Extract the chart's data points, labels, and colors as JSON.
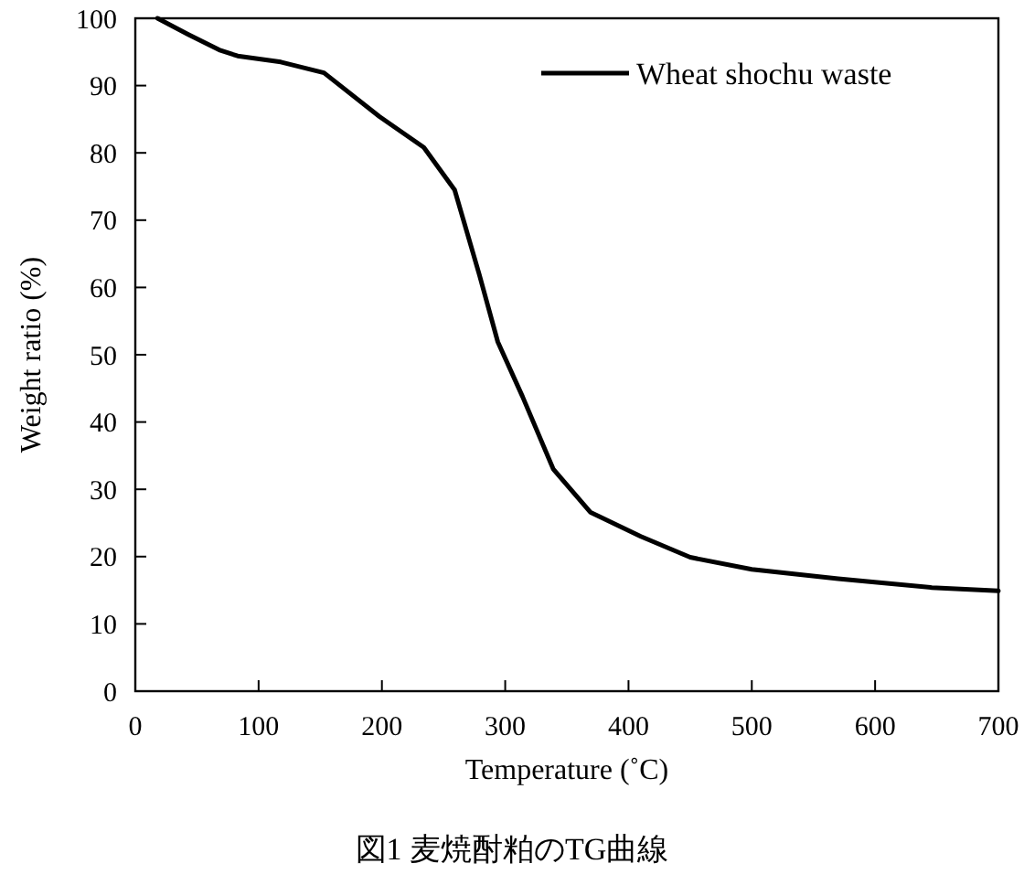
{
  "chart_data": {
    "type": "line",
    "xlabel": "Temperature (˚C)",
    "ylabel": "Weight ratio (%)",
    "annotations": [
      "図1 麦焼酎粕のTG曲線"
    ],
    "xlim": [
      0,
      700
    ],
    "xticks": [
      0,
      100,
      200,
      300,
      400,
      500,
      600,
      700
    ],
    "ylim": [
      0,
      100
    ],
    "yticks": [
      0,
      10,
      20,
      30,
      40,
      50,
      60,
      70,
      80,
      90,
      100
    ],
    "grid": false,
    "legend": "top right",
    "marker": "none",
    "line_style": "solid",
    "series": [
      {
        "name": "Wheat shochu waste",
        "color": "#000000",
        "x": [
          18,
          43,
          68,
          83,
          118,
          153,
          198,
          234,
          259,
          279,
          294,
          314,
          339,
          369,
          410,
          450,
          500,
          570,
          646,
          700
        ],
        "values": [
          100,
          97.6,
          95.3,
          94.4,
          93.5,
          91.9,
          85.4,
          80.8,
          74.5,
          61.9,
          51.9,
          43.8,
          33,
          26.6,
          23,
          19.9,
          18.1,
          16.7,
          15.4,
          14.9
        ]
      }
    ]
  }
}
